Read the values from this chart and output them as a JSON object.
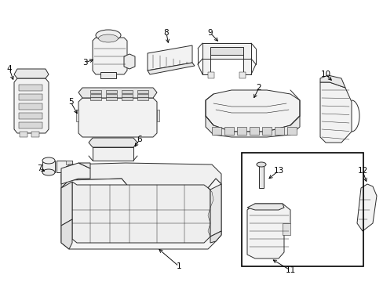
{
  "bg_color": "#ffffff",
  "line_color": "#2a2a2a",
  "lw": 0.7,
  "fig_w": 4.89,
  "fig_h": 3.6,
  "dpi": 100
}
